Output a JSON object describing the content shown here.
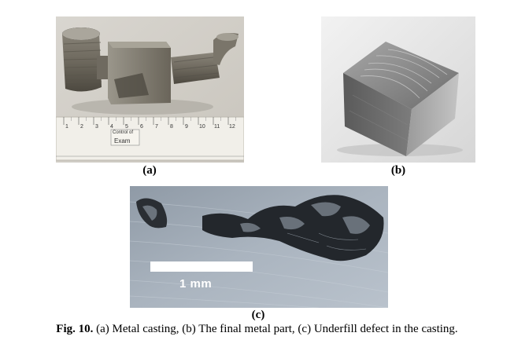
{
  "figure": {
    "panels": [
      {
        "id": "a",
        "label": "(a)",
        "ruler_numbers": [
          "1",
          "2",
          "3",
          "4",
          "5",
          "6",
          "7",
          "8",
          "9",
          "10",
          "11",
          "12"
        ],
        "tag_text": [
          "Control of",
          "Exam"
        ]
      },
      {
        "id": "b",
        "label": "(b)"
      },
      {
        "id": "c",
        "label": "(c)",
        "scale_bar": "1 mm"
      }
    ],
    "caption": {
      "prefix": "Fig. 10.",
      "text": " (a) Metal casting, (b) The final metal part, (c) Underfill defect in the casting."
    }
  }
}
